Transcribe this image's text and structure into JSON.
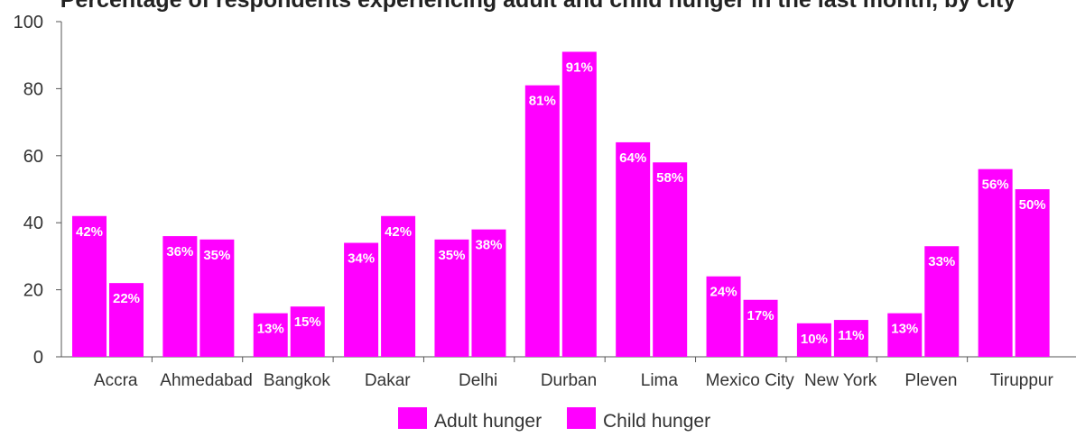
{
  "chart_data": {
    "type": "bar",
    "title": "Percentage of respondents experiencing adult and child hunger in the last month, by city",
    "categories": [
      "Accra",
      "Ahmedabad",
      "Bangkok",
      "Dakar",
      "Delhi",
      "Durban",
      "Lima",
      "Mexico City",
      "New York",
      "Pleven",
      "Tiruppur"
    ],
    "series": [
      {
        "name": "Adult hunger",
        "values": [
          42,
          36,
          13,
          34,
          35,
          81,
          64,
          24,
          10,
          13,
          56
        ],
        "labels": [
          "42%",
          "36%",
          "13%",
          "34%",
          "35%",
          "81%",
          "64%",
          "24%",
          "10%",
          "13%",
          "56%"
        ]
      },
      {
        "name": "Child hunger",
        "values": [
          22,
          35,
          15,
          42,
          38,
          91,
          58,
          17,
          11,
          33,
          50
        ],
        "labels": [
          "22%",
          "35%",
          "15%",
          "42%",
          "38%",
          "91%",
          "58%",
          "17%",
          "11%",
          "33%",
          "50%"
        ]
      }
    ],
    "ylim": [
      0,
      100
    ],
    "yticks": [
      "0",
      "20",
      "40",
      "60",
      "80",
      "100"
    ],
    "xlabel": "",
    "ylabel": "",
    "grid": false,
    "legend_position": "bottom",
    "colors": {
      "adult": "#ff00ff",
      "child": "#ff00ff",
      "axis": "#555555",
      "label_text": "#ffffff",
      "tick_text": "#333333"
    }
  }
}
